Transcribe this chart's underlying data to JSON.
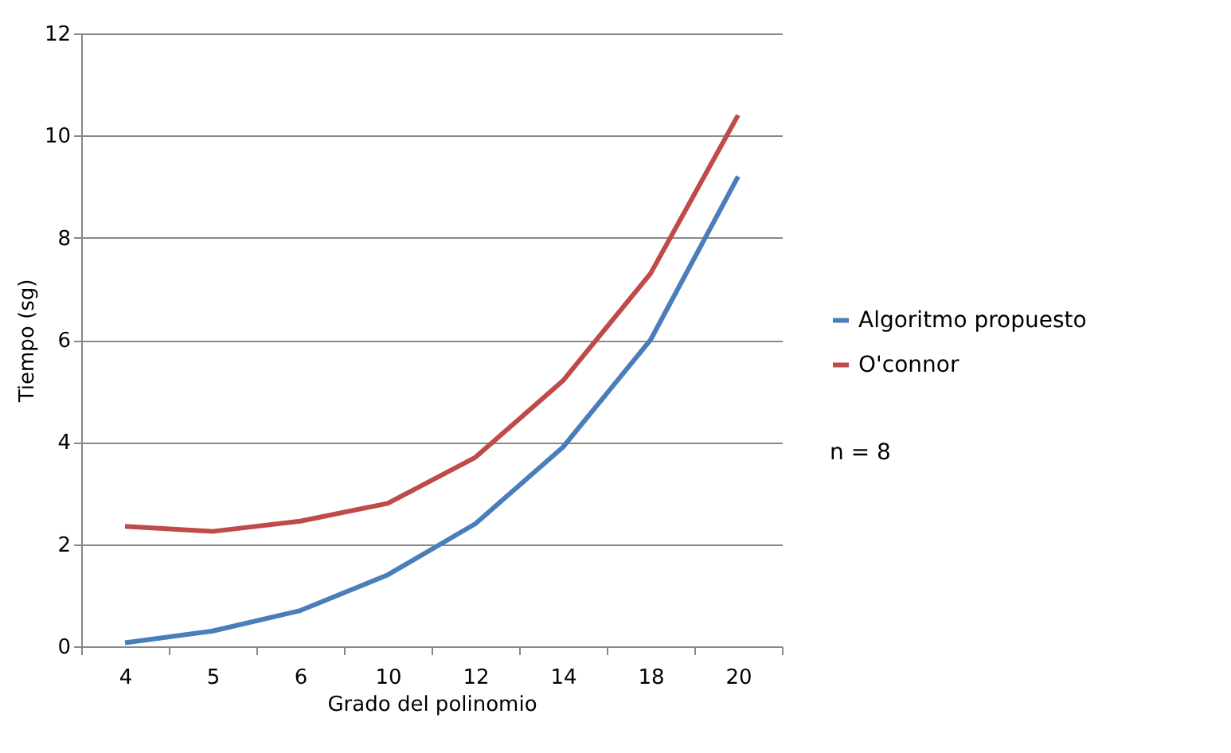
{
  "chart_data": {
    "type": "line",
    "xlabel": "Grado del polinomio",
    "ylabel": "Tiempo (sg)",
    "categories": [
      "4",
      "5",
      "6",
      "10",
      "12",
      "14",
      "18",
      "20"
    ],
    "series": [
      {
        "name": "Algoritmo propuesto",
        "color": "#4a7ebb",
        "values": [
          0.07,
          0.3,
          0.7,
          1.4,
          2.4,
          3.9,
          6.0,
          9.2
        ]
      },
      {
        "name": "O'connor",
        "color": "#be4b48",
        "values": [
          2.35,
          2.25,
          2.45,
          2.8,
          3.7,
          5.2,
          7.3,
          10.4
        ]
      }
    ],
    "ylim": [
      0,
      12
    ],
    "yticks": [
      0,
      2,
      4,
      6,
      8,
      10,
      12
    ],
    "grid": "y",
    "legend": "right",
    "annotations": [
      "n = 8"
    ]
  }
}
